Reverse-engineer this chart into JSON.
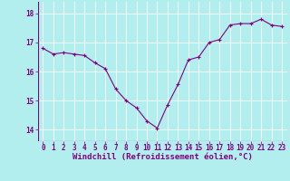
{
  "x": [
    0,
    1,
    2,
    3,
    4,
    5,
    6,
    7,
    8,
    9,
    10,
    11,
    12,
    13,
    14,
    15,
    16,
    17,
    18,
    19,
    20,
    21,
    22,
    23
  ],
  "y": [
    16.8,
    16.6,
    16.65,
    16.6,
    16.55,
    16.3,
    16.1,
    15.4,
    15.0,
    14.75,
    14.3,
    14.05,
    14.85,
    15.55,
    16.4,
    16.5,
    17.0,
    17.1,
    17.6,
    17.65,
    17.65,
    17.8,
    17.6,
    17.55
  ],
  "line_color": "#800080",
  "marker": "+",
  "background_color": "#b2eeee",
  "grid_color": "#ffffff",
  "xlabel": "Windchill (Refroidissement éolien,°C)",
  "yticks": [
    14,
    15,
    16,
    17,
    18
  ],
  "xticks": [
    0,
    1,
    2,
    3,
    4,
    5,
    6,
    7,
    8,
    9,
    10,
    11,
    12,
    13,
    14,
    15,
    16,
    17,
    18,
    19,
    20,
    21,
    22,
    23
  ],
  "ylim": [
    13.6,
    18.4
  ],
  "xlim": [
    -0.5,
    23.5
  ],
  "tick_color": "#800080",
  "xlabel_color": "#800080",
  "tick_fontsize": 5.5,
  "xlabel_fontsize": 6.5,
  "markersize": 3,
  "linewidth": 0.8
}
